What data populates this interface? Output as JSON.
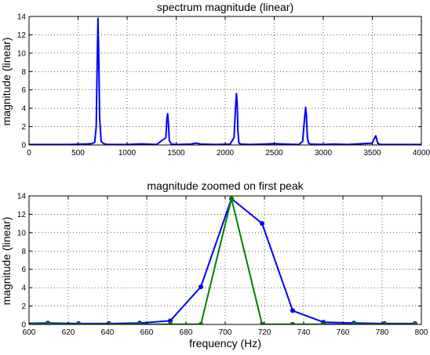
{
  "chart_data": [
    {
      "type": "line",
      "title": "spectrum magnitude (linear)",
      "xlabel": "",
      "ylabel": "magnitude (linear)",
      "xlim": [
        0,
        4000
      ],
      "ylim": [
        0,
        14
      ],
      "xticks": [
        0,
        500,
        1000,
        1500,
        2000,
        2500,
        3000,
        3500,
        4000
      ],
      "yticks": [
        0,
        2,
        4,
        6,
        8,
        10,
        12,
        14
      ],
      "grid": true,
      "colors": {
        "series": "#0000ff"
      },
      "series": [
        {
          "x": [
            0,
            400,
            550,
            600,
            640,
            670,
            685,
            695,
            703,
            711,
            720,
            735,
            760,
            800,
            1000,
            1100,
            1150,
            1200,
            1300,
            1395,
            1405,
            1413,
            1421,
            1430,
            1450,
            1500,
            1650,
            1700,
            1750,
            1900,
            2050,
            2090,
            2105,
            2115,
            2122,
            2130,
            2140,
            2160,
            2250,
            2400,
            2500,
            2600,
            2750,
            2790,
            2810,
            2820,
            2828,
            2838,
            2850,
            2870,
            3000,
            3100,
            3250,
            3500,
            3520,
            3535,
            3545,
            3555,
            3580,
            3700,
            4000
          ],
          "y": [
            0.05,
            0.05,
            0.1,
            0.12,
            0.15,
            0.3,
            2.0,
            9.0,
            13.8,
            9.5,
            3.0,
            0.4,
            0.15,
            0.05,
            0.05,
            0.1,
            0.12,
            0.1,
            0.05,
            0.8,
            2.8,
            3.4,
            2.4,
            0.5,
            0.1,
            0.05,
            0.1,
            0.2,
            0.1,
            0.05,
            0.1,
            0.8,
            4.0,
            5.6,
            4.6,
            1.5,
            0.2,
            0.1,
            0.05,
            0.1,
            0.15,
            0.1,
            0.05,
            0.4,
            3.0,
            4.1,
            3.2,
            0.8,
            0.2,
            0.1,
            0.05,
            0.1,
            0.05,
            0.2,
            0.7,
            1.0,
            0.6,
            0.2,
            0.05,
            0.05,
            0.05
          ]
        }
      ]
    },
    {
      "type": "line",
      "title": "magnitude zoomed on first peak",
      "xlabel": "frequency (Hz)",
      "ylabel": "magnitude (linear)",
      "xlim": [
        600,
        800
      ],
      "ylim": [
        0,
        14
      ],
      "xticks": [
        600,
        620,
        640,
        660,
        680,
        700,
        720,
        740,
        760,
        780,
        800
      ],
      "yticks": [
        0,
        2,
        4,
        6,
        8,
        10,
        12,
        14
      ],
      "grid": true,
      "series": [
        {
          "color": "#0000ff",
          "marker": "dot",
          "x": [
            594,
            609.6,
            625.2,
            640.8,
            656.4,
            672,
            687.6,
            703.2,
            718.8,
            734.4,
            750,
            765.6,
            781.2,
            796.8
          ],
          "y": [
            0.1,
            0.15,
            0.1,
            0.1,
            0.15,
            0.4,
            4.1,
            13.7,
            11.0,
            1.5,
            0.25,
            0.15,
            0.1,
            0.1
          ]
        },
        {
          "color": "#008000",
          "marker": "dot",
          "x": [
            594,
            609.6,
            625.2,
            640.8,
            656.4,
            672,
            687.6,
            703.2,
            718.8,
            734.4,
            750,
            765.6,
            781.2,
            796.8
          ],
          "y": [
            0.05,
            0.05,
            0.02,
            0.02,
            0.02,
            0.02,
            0.02,
            13.7,
            0.02,
            0.02,
            0.02,
            0.02,
            0.02,
            0.02
          ]
        }
      ]
    }
  ]
}
